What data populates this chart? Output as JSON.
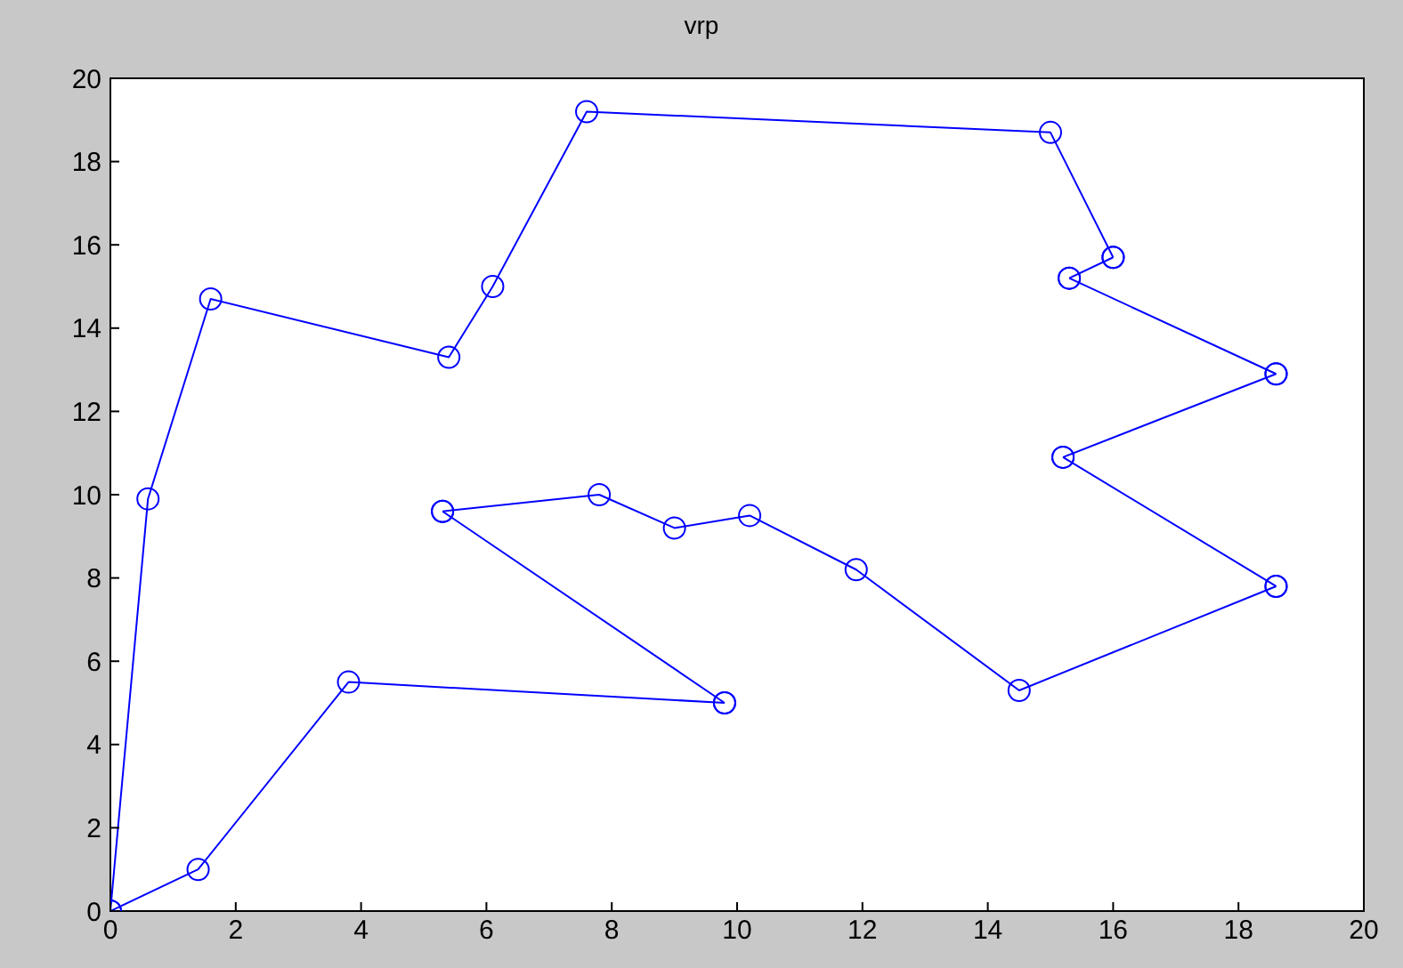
{
  "chart_data": {
    "type": "line",
    "title": "vrp",
    "series": [
      {
        "color": "#0000ff",
        "x": [
          0,
          0.6,
          1.6,
          5.4,
          6.1,
          7.6,
          15.0,
          16.0
        ],
        "values": [
          0,
          9.9,
          14.7,
          13.3,
          15.0,
          19.2,
          18.7,
          15.7
        ]
      },
      {
        "color": "#0000ff",
        "x": [
          16.0,
          15.3
        ],
        "values": [
          15.7,
          15.2
        ]
      },
      {
        "color": "#0000ff",
        "x": [
          15.3,
          18.6
        ],
        "values": [
          15.2,
          12.9
        ]
      },
      {
        "color": "#0000ff",
        "x": [
          18.6,
          15.2
        ],
        "values": [
          12.9,
          10.9
        ]
      },
      {
        "color": "#0000ff",
        "x": [
          15.2,
          18.6
        ],
        "values": [
          10.9,
          7.8
        ]
      },
      {
        "color": "#0000ff",
        "x": [
          18.6,
          14.5,
          11.9,
          10.2,
          9.0,
          7.8,
          5.3
        ],
        "values": [
          7.8,
          5.3,
          8.2,
          9.5,
          9.2,
          10.0,
          9.6
        ]
      },
      {
        "color": "#0000ff",
        "x": [
          5.3,
          9.8
        ],
        "values": [
          9.6,
          5.0
        ]
      },
      {
        "color": "#0000ff",
        "x": [
          9.8,
          3.8,
          1.4,
          0
        ],
        "values": [
          5.0,
          5.5,
          1.0,
          0
        ]
      }
    ],
    "xlim": [
      0,
      20
    ],
    "xticks": [
      0,
      2,
      4,
      6,
      8,
      10,
      12,
      14,
      16,
      18,
      20
    ],
    "ylim": [
      0,
      20
    ],
    "yticks": [
      0,
      2,
      4,
      6,
      8,
      10,
      12,
      14,
      16,
      18,
      20
    ],
    "marker": "circle",
    "line_style": "solid"
  }
}
